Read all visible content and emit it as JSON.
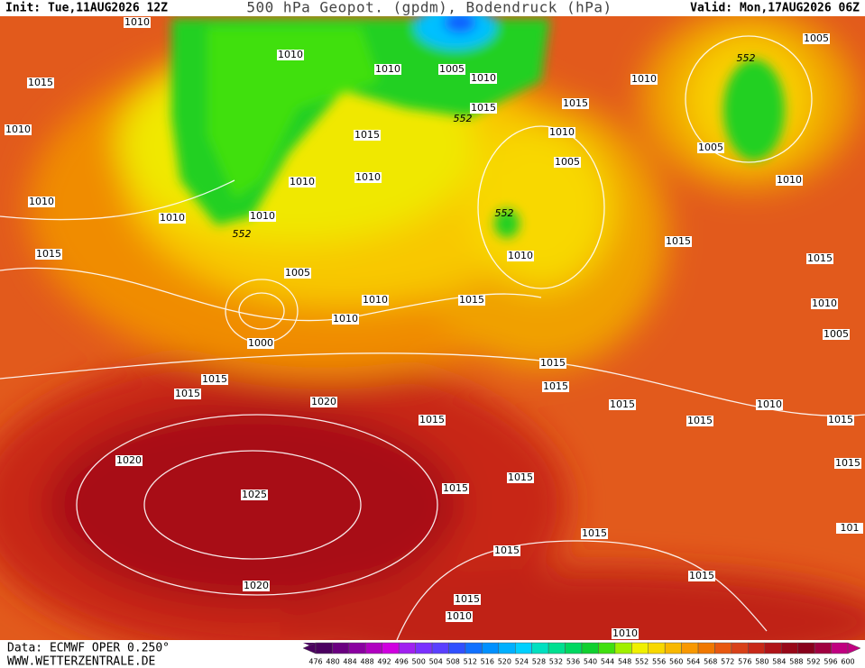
{
  "header": {
    "init": "Init: Tue,11AUG2026 12Z",
    "title": "500 hPa Geopot. (gpdm), Bodendruck (hPa)",
    "valid": "Valid: Mon,17AUG2026 06Z"
  },
  "footer": {
    "source": "Data: ECMWF OPER 0.250°",
    "website": "WWW.WETTERZENTRALE.DE"
  },
  "isobar_labels": [
    1010,
    1015,
    1010,
    1010,
    1010,
    1005,
    1010,
    1015,
    552,
    1015,
    1010,
    1010,
    1010,
    1010,
    552,
    1010,
    1015,
    1005,
    1010,
    1010,
    1000,
    1015,
    1015,
    1015,
    1020,
    1015,
    1020,
    1025,
    1020,
    1015,
    1015,
    1015,
    1015,
    1015,
    1010,
    1010,
    1015,
    1015,
    1015,
    1015,
    1015,
    1010,
    1015,
    1015,
    1010,
    1005,
    1015,
    1010,
    1015,
    1010,
    1005,
    552,
    1010,
    552,
    1005,
    1005,
    1010,
    1015,
    101
  ],
  "colorbar": {
    "labels": [
      476,
      480,
      484,
      488,
      492,
      496,
      500,
      504,
      508,
      512,
      516,
      520,
      524,
      528,
      532,
      536,
      540,
      544,
      548,
      552,
      556,
      560,
      564,
      568,
      572,
      576,
      580,
      584,
      588,
      592,
      596,
      600
    ],
    "colors": [
      "#4b0060",
      "#6a0080",
      "#8a00a0",
      "#b000c0",
      "#d000e0",
      "#a020f0",
      "#7a30ff",
      "#5a40ff",
      "#3050ff",
      "#1070ff",
      "#0090ff",
      "#00b0ff",
      "#00d0ff",
      "#00e0c0",
      "#00e090",
      "#00d860",
      "#10d030",
      "#40e010",
      "#a0f000",
      "#f0f000",
      "#f8d800",
      "#f8b800",
      "#f89800",
      "#f07800",
      "#e85810",
      "#d84018",
      "#c82818",
      "#b01418",
      "#980818",
      "#88001c",
      "#a00040",
      "#c00080"
    ]
  }
}
